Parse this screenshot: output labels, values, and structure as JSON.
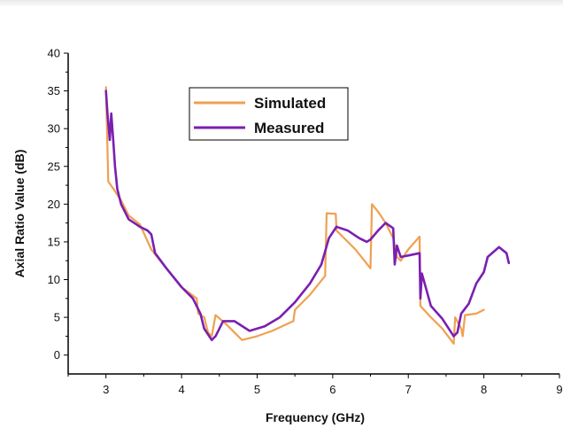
{
  "chart_data": {
    "type": "line",
    "xlabel": "Frequency (GHz)",
    "ylabel": "Axial Ratio Value (dB)",
    "xlim": [
      2.5,
      9
    ],
    "ylim": [
      -2.5,
      40
    ],
    "x_ticks": [
      3,
      4,
      5,
      6,
      7,
      8,
      9
    ],
    "y_ticks": [
      0,
      5,
      10,
      15,
      20,
      25,
      30,
      35,
      40
    ],
    "legend_position": "top-center",
    "grid": false,
    "series": [
      {
        "name": "Simulated",
        "color": "#F0A050",
        "points": [
          [
            3.0,
            35.5
          ],
          [
            3.03,
            23
          ],
          [
            3.1,
            22
          ],
          [
            3.2,
            20.5
          ],
          [
            3.3,
            18.5
          ],
          [
            3.45,
            17.3
          ],
          [
            3.6,
            14
          ],
          [
            3.8,
            11.5
          ],
          [
            4.0,
            9
          ],
          [
            4.2,
            7.5
          ],
          [
            4.22,
            5.5
          ],
          [
            4.3,
            5
          ],
          [
            4.35,
            3
          ],
          [
            4.4,
            2.5
          ],
          [
            4.45,
            5.3
          ],
          [
            4.6,
            4
          ],
          [
            4.7,
            3
          ],
          [
            4.8,
            2
          ],
          [
            5.0,
            2.5
          ],
          [
            5.2,
            3.2
          ],
          [
            5.48,
            4.5
          ],
          [
            5.5,
            6
          ],
          [
            5.7,
            8
          ],
          [
            5.9,
            10.5
          ],
          [
            5.92,
            18.8
          ],
          [
            6.04,
            18.7
          ],
          [
            6.05,
            16.5
          ],
          [
            6.3,
            14
          ],
          [
            6.5,
            11.5
          ],
          [
            6.52,
            20
          ],
          [
            6.6,
            19
          ],
          [
            6.7,
            17.5
          ],
          [
            6.8,
            15.5
          ],
          [
            6.85,
            13
          ],
          [
            6.9,
            12.5
          ],
          [
            7.0,
            14
          ],
          [
            7.15,
            15.7
          ],
          [
            7.16,
            6.5
          ],
          [
            7.3,
            5
          ],
          [
            7.45,
            3.5
          ],
          [
            7.6,
            1.5
          ],
          [
            7.62,
            5
          ],
          [
            7.7,
            3.5
          ],
          [
            7.72,
            2.5
          ],
          [
            7.75,
            5.3
          ],
          [
            7.9,
            5.5
          ],
          [
            8.0,
            6
          ]
        ]
      },
      {
        "name": "Measured",
        "color": "#7A1FB0",
        "points": [
          [
            3.0,
            35
          ],
          [
            3.02,
            32
          ],
          [
            3.05,
            28.5
          ],
          [
            3.07,
            32
          ],
          [
            3.1,
            28
          ],
          [
            3.12,
            25
          ],
          [
            3.15,
            22
          ],
          [
            3.2,
            20
          ],
          [
            3.3,
            18
          ],
          [
            3.45,
            17
          ],
          [
            3.55,
            16.5
          ],
          [
            3.6,
            16
          ],
          [
            3.65,
            13.5
          ],
          [
            3.8,
            11.5
          ],
          [
            4.0,
            9
          ],
          [
            4.15,
            7.5
          ],
          [
            4.25,
            5.5
          ],
          [
            4.3,
            3.5
          ],
          [
            4.4,
            2
          ],
          [
            4.45,
            2.5
          ],
          [
            4.5,
            3.5
          ],
          [
            4.55,
            4.5
          ],
          [
            4.7,
            4.5
          ],
          [
            4.9,
            3.2
          ],
          [
            5.1,
            3.8
          ],
          [
            5.3,
            5
          ],
          [
            5.5,
            7
          ],
          [
            5.7,
            9.5
          ],
          [
            5.85,
            12
          ],
          [
            5.95,
            15.5
          ],
          [
            6.05,
            17
          ],
          [
            6.2,
            16.5
          ],
          [
            6.35,
            15.5
          ],
          [
            6.45,
            15
          ],
          [
            6.5,
            15.3
          ],
          [
            6.6,
            16.5
          ],
          [
            6.7,
            17.5
          ],
          [
            6.8,
            16.8
          ],
          [
            6.82,
            12
          ],
          [
            6.85,
            14.5
          ],
          [
            6.9,
            13
          ],
          [
            7.0,
            13.2
          ],
          [
            7.15,
            13.5
          ],
          [
            7.16,
            7.5
          ],
          [
            7.18,
            10.8
          ],
          [
            7.3,
            6.5
          ],
          [
            7.45,
            4.8
          ],
          [
            7.6,
            2.5
          ],
          [
            7.65,
            3
          ],
          [
            7.7,
            5.5
          ],
          [
            7.8,
            6.8
          ],
          [
            7.9,
            9.5
          ],
          [
            8.0,
            11
          ],
          [
            8.05,
            13
          ],
          [
            8.2,
            14.3
          ],
          [
            8.3,
            13.5
          ],
          [
            8.33,
            12.2
          ]
        ]
      }
    ]
  }
}
